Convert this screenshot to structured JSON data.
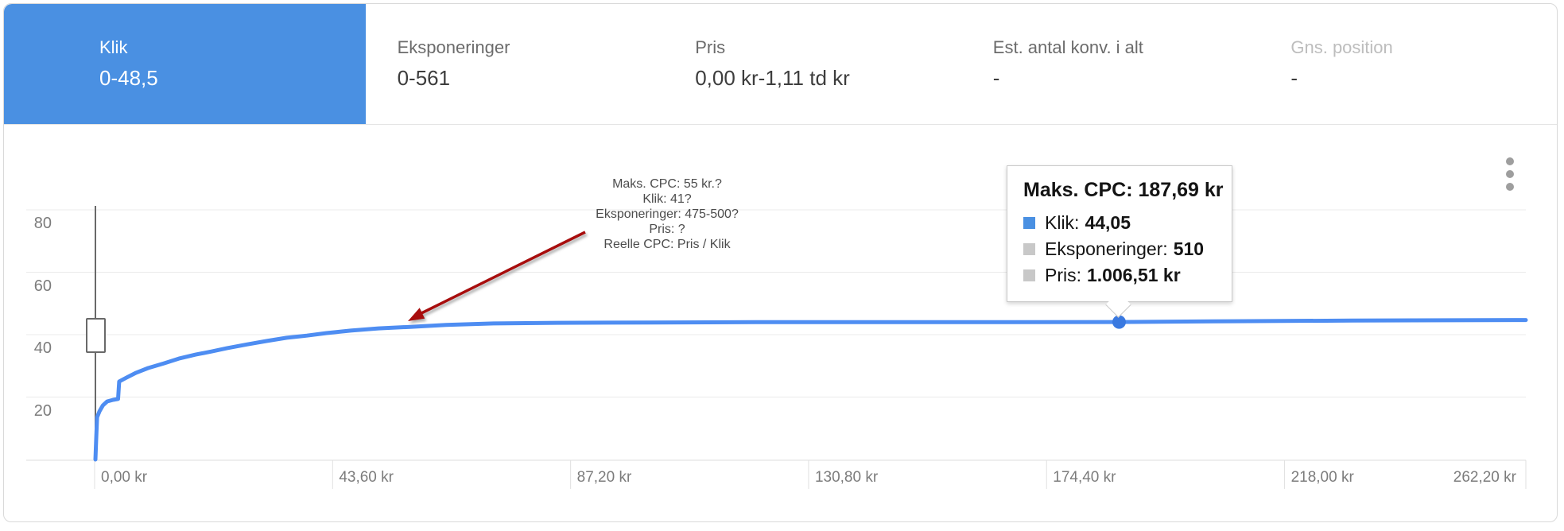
{
  "colors": {
    "tab_selected_bg": "#4a90e2",
    "line_blue": "#4e8df2",
    "dot_blue": "#3a79e0",
    "swatch_gray": "#c8c8c8",
    "arrow_red": "#a80f0f",
    "grid_gray": "#ebebeb",
    "axis_text": "#7c7c7c"
  },
  "header": {
    "tabs": [
      {
        "label": "Klik",
        "value": "0-48,5",
        "selected": true,
        "disabled": false
      },
      {
        "label": "Eksponeringer",
        "value": "0-561",
        "selected": false,
        "disabled": false
      },
      {
        "label": "Pris",
        "value": "0,00 kr-1,11 td kr",
        "selected": false,
        "disabled": false
      },
      {
        "label": "Est. antal konv. i alt",
        "value": "-",
        "selected": false,
        "disabled": false
      },
      {
        "label": "Gns. position",
        "value": "-",
        "selected": false,
        "disabled": true
      }
    ]
  },
  "chart": {
    "menu_icon": "kebab-menu",
    "annotation": {
      "lines": [
        "Maks. CPC: 55 kr.?",
        "Klik: 41?",
        "Eksponeringer: 475-500?",
        "Pris: ?",
        "Reelle CPC: Pris / Klik"
      ]
    },
    "tooltip": {
      "title": "Maks. CPC: 187,69 kr",
      "rows": [
        {
          "label": "Klik:",
          "value": "44,05",
          "swatch": "#4a90e2"
        },
        {
          "label": "Eksponeringer:",
          "value": "510",
          "swatch": "#c8c8c8"
        },
        {
          "label": "Pris:",
          "value": "1.006,51 kr",
          "swatch": "#c8c8c8"
        }
      ]
    }
  },
  "chart_data": {
    "type": "line",
    "title": "",
    "xlabel": "",
    "ylabel": "",
    "xlim": [
      0,
      262.2
    ],
    "ylim": [
      0,
      93.5
    ],
    "grid": true,
    "legend": "none",
    "x_ticks": [
      {
        "value": 0,
        "label": "0,00 kr"
      },
      {
        "value": 43.6,
        "label": "43,60 kr"
      },
      {
        "value": 87.2,
        "label": "87,20 kr"
      },
      {
        "value": 130.8,
        "label": "130,80 kr"
      },
      {
        "value": 174.4,
        "label": "174,40 kr"
      },
      {
        "value": 218.0,
        "label": "218,00 kr"
      },
      {
        "value": 262.2,
        "label": "262,20 kr",
        "align": "right"
      }
    ],
    "y_ticks": [
      20,
      40,
      60,
      80
    ],
    "series": [
      {
        "name": "Klik",
        "color": "#4e8df2",
        "x": [
          0.15,
          0.3,
          0.45,
          0.9,
          1.5,
          2.3,
          3.4,
          4.3,
          4.5,
          5.8,
          7.6,
          9.8,
          12.7,
          15.6,
          18.5,
          21.4,
          24.3,
          28,
          31.6,
          35.2,
          38.9,
          42.5,
          46.9,
          52,
          57.8,
          64.4,
          73.1,
          84.8,
          102,
          121,
          143,
          165,
          187.69,
          208.6,
          230.4,
          262.2
        ],
        "y": [
          0,
          7.4,
          13.5,
          15.5,
          17.3,
          18.6,
          19.1,
          19.4,
          25,
          26.2,
          27.8,
          29.3,
          30.8,
          32.4,
          33.6,
          34.6,
          35.7,
          36.9,
          38,
          39,
          39.7,
          40.5,
          41.3,
          42,
          42.5,
          43.1,
          43.6,
          43.8,
          43.9,
          44,
          44,
          44,
          44.05,
          44.3,
          44.5,
          44.7
        ]
      }
    ],
    "highlight_point": {
      "x": 187.69,
      "y": 44.05
    }
  }
}
